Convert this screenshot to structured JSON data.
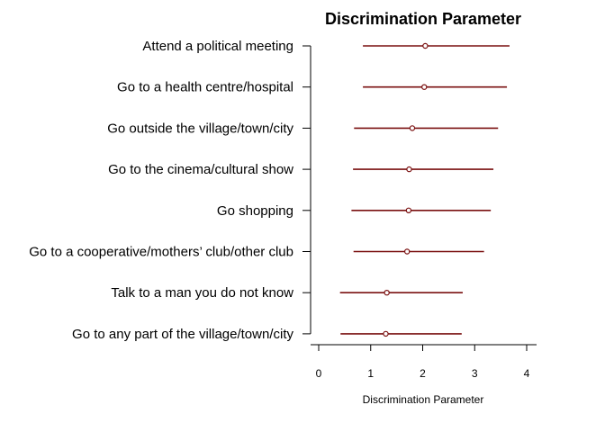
{
  "chart_data": {
    "type": "scatter",
    "title": "Discrimination Parameter",
    "xlabel": "Discrimination Parameter",
    "ylabel": "",
    "xlim": [
      0,
      4
    ],
    "xticks": [
      "0",
      "1",
      "2",
      "3",
      "4"
    ],
    "point_color": "#7a1010",
    "categories": [
      "Attend a political meeting",
      "Go to a health centre/hospital",
      "Go outside the village/town/city",
      "Go to the cinema/cultural show",
      "Go shopping",
      "Go to a cooperative/mothers’ club/other club",
      "Talk to a man you do not know",
      "Go to any part of the village/town/city"
    ],
    "series": [
      {
        "values": [
          2.05,
          2.03,
          1.8,
          1.74,
          1.73,
          1.7,
          1.31,
          1.29
        ],
        "lower": [
          0.85,
          0.85,
          0.68,
          0.66,
          0.63,
          0.67,
          0.41,
          0.42
        ],
        "upper": [
          3.67,
          3.62,
          3.45,
          3.36,
          3.31,
          3.18,
          2.77,
          2.75
        ]
      }
    ]
  }
}
